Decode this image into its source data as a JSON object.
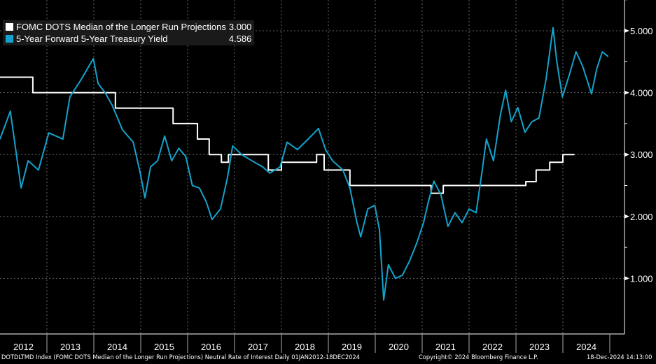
{
  "chart_data": {
    "type": "line",
    "title": "",
    "xlim": [
      2012.0,
      2025.3
    ],
    "ylim": [
      0.35,
      5.4
    ],
    "y_ticks": [
      1,
      2,
      3,
      4,
      5
    ],
    "y_tick_labels": [
      "1.000",
      "2.000",
      "3.000",
      "4.000",
      "5.000"
    ],
    "x_tick_labels": [
      "2012",
      "2013",
      "2014",
      "2015",
      "2016",
      "2017",
      "2018",
      "2019",
      "2020",
      "2021",
      "2022",
      "2023",
      "2024"
    ],
    "grid": true,
    "legend_position": "top-left",
    "series": [
      {
        "name": "FOMC DOTS Median of the Longer Run Projections",
        "last": "3.000",
        "color": "#ffffff",
        "step": true,
        "x": [
          2012.0,
          2012.7,
          2014.46,
          2015.69,
          2016.21,
          2016.46,
          2016.72,
          2016.87,
          2017.72,
          2018.0,
          2018.75,
          2018.91,
          2019.46,
          2021.19,
          2021.45,
          2023.21,
          2023.43,
          2023.72,
          2024.0,
          2024.24
        ],
        "y": [
          4.25,
          4.0,
          3.75,
          3.5,
          3.25,
          3.0,
          2.875,
          3.0,
          2.75,
          2.875,
          3.0,
          2.75,
          2.5,
          2.375,
          2.5,
          2.5625,
          2.75,
          2.875,
          3.0,
          3.0
        ]
      },
      {
        "name": "5-Year Forward 5-Year Treasury Yield",
        "last": "4.586",
        "color": "#13a3cc",
        "step": false,
        "x": [
          2012.0,
          2012.22,
          2012.45,
          2012.6,
          2012.82,
          2013.04,
          2013.34,
          2013.49,
          2013.72,
          2013.99,
          2014.09,
          2014.24,
          2014.39,
          2014.61,
          2014.84,
          2014.99,
          2015.09,
          2015.21,
          2015.36,
          2015.51,
          2015.66,
          2015.81,
          2015.96,
          2016.1,
          2016.25,
          2016.4,
          2016.52,
          2016.7,
          2016.85,
          2016.96,
          2017.15,
          2017.37,
          2017.6,
          2017.75,
          2017.97,
          2018.12,
          2018.34,
          2018.57,
          2018.79,
          2018.94,
          2019.09,
          2019.31,
          2019.46,
          2019.61,
          2019.69,
          2019.84,
          2019.99,
          2020.09,
          2020.18,
          2020.28,
          2020.43,
          2020.58,
          2020.73,
          2020.88,
          2021.03,
          2021.13,
          2021.25,
          2021.4,
          2021.55,
          2021.7,
          2021.85,
          2022.0,
          2022.15,
          2022.27,
          2022.37,
          2022.52,
          2022.67,
          2022.78,
          2022.9,
          2023.04,
          2023.19,
          2023.34,
          2023.49,
          2023.64,
          2023.79,
          2023.87,
          2023.99,
          2024.13,
          2024.28,
          2024.42,
          2024.61,
          2024.72,
          2024.84,
          2024.96
        ],
        "y": [
          3.25,
          3.7,
          2.46,
          2.9,
          2.75,
          3.35,
          3.25,
          3.93,
          4.2,
          4.55,
          4.15,
          4.0,
          3.8,
          3.4,
          3.2,
          2.7,
          2.3,
          2.8,
          2.9,
          3.3,
          2.9,
          3.1,
          2.97,
          2.5,
          2.46,
          2.23,
          1.95,
          2.12,
          2.63,
          3.14,
          3.0,
          2.9,
          2.8,
          2.7,
          2.8,
          3.2,
          3.08,
          3.25,
          3.42,
          3.08,
          2.9,
          2.75,
          2.46,
          1.9,
          1.67,
          2.12,
          2.18,
          1.78,
          0.65,
          1.22,
          1.0,
          1.05,
          1.28,
          1.56,
          1.9,
          2.23,
          2.57,
          2.35,
          1.84,
          2.06,
          1.9,
          2.12,
          2.06,
          2.69,
          3.25,
          2.9,
          3.65,
          4.04,
          3.53,
          3.76,
          3.36,
          3.53,
          3.59,
          4.21,
          5.05,
          4.5,
          3.93,
          4.27,
          4.66,
          4.43,
          3.98,
          4.38,
          4.66,
          4.586
        ]
      }
    ]
  },
  "footer": {
    "left": "DOTDLTMD Index (FOMC DOTS Median of the Longer Run Projections) Neutral Rate of Interest  Daily 01JAN2012-18DEC2024",
    "center": "Copyright© 2024 Bloomberg Finance L.P.",
    "right": "18-Dec-2024 14:13:00"
  }
}
